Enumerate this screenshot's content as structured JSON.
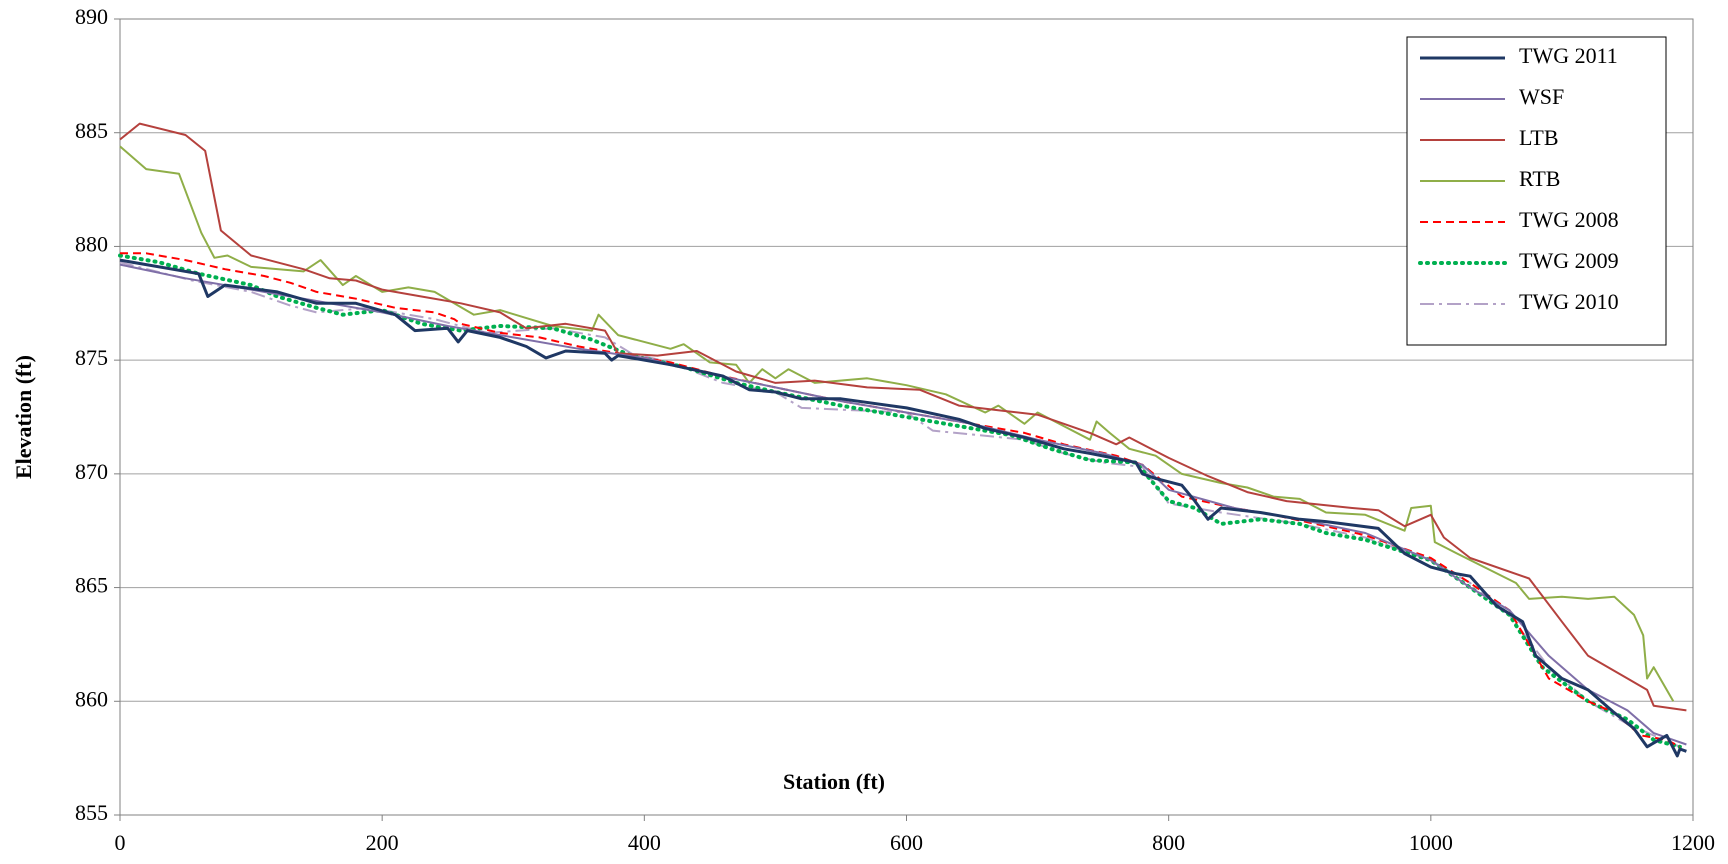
{
  "chart_data": {
    "type": "line",
    "x_label": "Station (ft)",
    "y_label": "Elevation (ft)",
    "xlim": [
      0,
      1200
    ],
    "xticks": [
      0,
      200,
      400,
      600,
      800,
      1000,
      1200
    ],
    "ylim": [
      855,
      890
    ],
    "yticks": [
      855,
      860,
      865,
      870,
      875,
      880,
      885,
      890
    ],
    "grid": true,
    "legend": "upper right",
    "series": [
      {
        "name": "TWG 2011",
        "color": "#1f3864",
        "linestyle": "solid",
        "linewidth": 3,
        "x": [
          0,
          60,
          67,
          80,
          120,
          150,
          180,
          210,
          225,
          250,
          258,
          265,
          290,
          310,
          325,
          340,
          370,
          375,
          380,
          420,
          460,
          480,
          500,
          520,
          550,
          600,
          640,
          660,
          690,
          720,
          740,
          775,
          780,
          790,
          810,
          820,
          830,
          840,
          870,
          900,
          920,
          960,
          980,
          1000,
          1020,
          1030,
          1050,
          1070,
          1080,
          1100,
          1120,
          1140,
          1155,
          1165,
          1180,
          1188,
          1190,
          1195
        ],
        "values": [
          879.4,
          878.8,
          877.8,
          878.3,
          878.0,
          877.5,
          877.5,
          877.0,
          876.3,
          876.4,
          875.8,
          876.3,
          876.0,
          875.6,
          875.1,
          875.4,
          875.3,
          875.0,
          875.2,
          874.8,
          874.3,
          873.7,
          873.6,
          873.3,
          873.3,
          872.9,
          872.4,
          872.0,
          871.6,
          871.1,
          870.9,
          870.5,
          870.0,
          869.8,
          869.5,
          868.8,
          868.0,
          868.5,
          868.3,
          868.0,
          867.9,
          867.6,
          866.5,
          865.9,
          865.6,
          865.5,
          864.2,
          863.5,
          862.0,
          861.0,
          860.5,
          859.5,
          858.8,
          858.0,
          858.5,
          857.6,
          857.9,
          857.8
        ]
      },
      {
        "name": "WSF",
        "color": "#7f6fa8",
        "linestyle": "solid",
        "linewidth": 2,
        "x": [
          0,
          50,
          100,
          150,
          200,
          250,
          300,
          350,
          400,
          450,
          500,
          550,
          600,
          650,
          700,
          750,
          780,
          800,
          850,
          900,
          950,
          1000,
          1030,
          1060,
          1090,
          1120,
          1150,
          1170,
          1185,
          1195
        ],
        "values": [
          879.2,
          878.6,
          878.1,
          877.6,
          877.1,
          876.5,
          876.0,
          875.5,
          875.1,
          874.4,
          873.8,
          873.2,
          872.7,
          872.2,
          871.5,
          870.9,
          870.4,
          869.3,
          868.5,
          868.0,
          867.4,
          866.2,
          865.0,
          864.0,
          862.0,
          860.5,
          859.6,
          858.6,
          858.3,
          858.1
        ]
      },
      {
        "name": "LTB",
        "color": "#b5413d",
        "linestyle": "solid",
        "linewidth": 2,
        "x": [
          0,
          15,
          50,
          65,
          77,
          100,
          140,
          160,
          180,
          200,
          230,
          260,
          290,
          310,
          340,
          370,
          380,
          410,
          440,
          470,
          500,
          530,
          570,
          610,
          640,
          670,
          700,
          740,
          760,
          770,
          800,
          830,
          860,
          890,
          940,
          960,
          980,
          1000,
          1010,
          1030,
          1075,
          1100,
          1120,
          1150,
          1165,
          1170,
          1195
        ],
        "values": [
          884.7,
          885.4,
          884.9,
          884.2,
          880.7,
          879.6,
          879.0,
          878.6,
          878.5,
          878.1,
          877.8,
          877.5,
          877.1,
          876.4,
          876.6,
          876.3,
          875.3,
          875.2,
          875.4,
          874.5,
          874.0,
          874.1,
          873.8,
          873.7,
          873.0,
          872.8,
          872.6,
          871.8,
          871.3,
          871.6,
          870.7,
          869.9,
          869.2,
          868.8,
          868.5,
          868.4,
          867.7,
          868.2,
          867.2,
          866.3,
          865.4,
          863.5,
          862.0,
          861.0,
          860.5,
          859.8,
          859.6
        ]
      },
      {
        "name": "RTB",
        "color": "#8fae48",
        "linestyle": "solid",
        "linewidth": 2,
        "x": [
          0,
          20,
          45,
          62,
          72,
          82,
          100,
          140,
          153,
          170,
          180,
          200,
          220,
          240,
          270,
          290,
          330,
          360,
          365,
          380,
          420,
          430,
          450,
          470,
          480,
          490,
          500,
          510,
          530,
          570,
          600,
          630,
          660,
          670,
          690,
          700,
          720,
          740,
          745,
          755,
          770,
          790,
          810,
          840,
          860,
          880,
          900,
          920,
          950,
          980,
          985,
          1000,
          1003,
          1020,
          1065,
          1075,
          1100,
          1120,
          1140,
          1155,
          1162,
          1165,
          1170,
          1185
        ],
        "values": [
          884.4,
          883.4,
          883.2,
          880.6,
          879.5,
          879.6,
          879.1,
          878.9,
          879.4,
          878.3,
          878.7,
          878.0,
          878.2,
          878.0,
          877.0,
          877.2,
          876.5,
          876.3,
          877.0,
          876.1,
          875.5,
          875.7,
          874.9,
          874.8,
          874.0,
          874.6,
          874.2,
          874.6,
          874.0,
          874.2,
          873.9,
          873.5,
          872.7,
          873.0,
          872.2,
          872.7,
          872.1,
          871.5,
          872.3,
          871.8,
          871.1,
          870.8,
          870.0,
          869.6,
          869.4,
          869.0,
          868.9,
          868.3,
          868.2,
          867.5,
          868.5,
          868.6,
          867.0,
          866.5,
          865.2,
          864.5,
          864.6,
          864.5,
          864.6,
          863.8,
          862.9,
          861.0,
          861.5,
          860.0
        ]
      },
      {
        "name": "TWG 2008",
        "color": "#ff0000",
        "linestyle": "dashed",
        "linewidth": 2,
        "x": [
          0,
          20,
          50,
          80,
          110,
          130,
          150,
          180,
          210,
          240,
          255,
          260,
          290,
          320,
          350,
          380,
          420,
          460,
          500,
          550,
          600,
          650,
          690,
          720,
          760,
          780,
          810,
          850,
          880,
          920,
          950,
          1000,
          1030,
          1060,
          1090,
          1120,
          1140,
          1160,
          1180,
          1190
        ],
        "values": [
          879.7,
          879.7,
          879.4,
          879.0,
          878.7,
          878.4,
          878.0,
          877.7,
          877.3,
          877.1,
          876.8,
          876.6,
          876.2,
          876.0,
          875.6,
          875.3,
          874.9,
          874.3,
          873.8,
          873.2,
          872.7,
          872.2,
          871.8,
          871.3,
          870.8,
          870.4,
          869.0,
          868.5,
          868.2,
          867.7,
          867.3,
          866.3,
          865.2,
          864.0,
          861.0,
          860.0,
          859.5,
          858.5,
          858.3,
          858.0
        ]
      },
      {
        "name": "TWG 2009",
        "color": "#00b050",
        "linestyle": "dotted",
        "linewidth": 4,
        "x": [
          0,
          30,
          60,
          100,
          120,
          150,
          170,
          200,
          230,
          260,
          290,
          330,
          360,
          390,
          430,
          470,
          500,
          550,
          600,
          640,
          680,
          710,
          740,
          775,
          800,
          820,
          840,
          870,
          900,
          920,
          950,
          1000,
          1030,
          1060,
          1085,
          1120,
          1150,
          1170,
          1190
        ],
        "values": [
          879.6,
          879.3,
          878.8,
          878.3,
          877.8,
          877.3,
          877.0,
          877.2,
          876.6,
          876.3,
          876.5,
          876.4,
          875.9,
          875.2,
          874.7,
          874.0,
          873.6,
          873.0,
          872.5,
          872.1,
          871.7,
          871.1,
          870.6,
          870.5,
          868.8,
          868.5,
          867.8,
          868.0,
          867.8,
          867.4,
          867.1,
          866.2,
          865.0,
          863.8,
          861.5,
          860.0,
          859.2,
          858.3,
          858.0
        ]
      },
      {
        "name": "TWG 2010",
        "color": "#b3a2c7",
        "linestyle": "dashdot",
        "linewidth": 2,
        "x": [
          0,
          55,
          100,
          130,
          150,
          190,
          240,
          280,
          330,
          370,
          390,
          420,
          460,
          500,
          520,
          600,
          620,
          690,
          720,
          750,
          780,
          800,
          840,
          900,
          950,
          1000,
          1030,
          1060,
          1090,
          1120,
          1150,
          1170,
          1190
        ],
        "values": [
          879.3,
          878.5,
          878.0,
          877.4,
          877.1,
          877.3,
          876.8,
          876.2,
          876.4,
          876.0,
          875.3,
          874.9,
          874.0,
          873.6,
          872.9,
          872.7,
          871.9,
          871.5,
          870.9,
          870.5,
          870.3,
          868.7,
          868.3,
          867.8,
          867.2,
          866.2,
          865.2,
          863.8,
          861.5,
          860.0,
          859.0,
          858.5,
          858.0
        ]
      }
    ]
  }
}
